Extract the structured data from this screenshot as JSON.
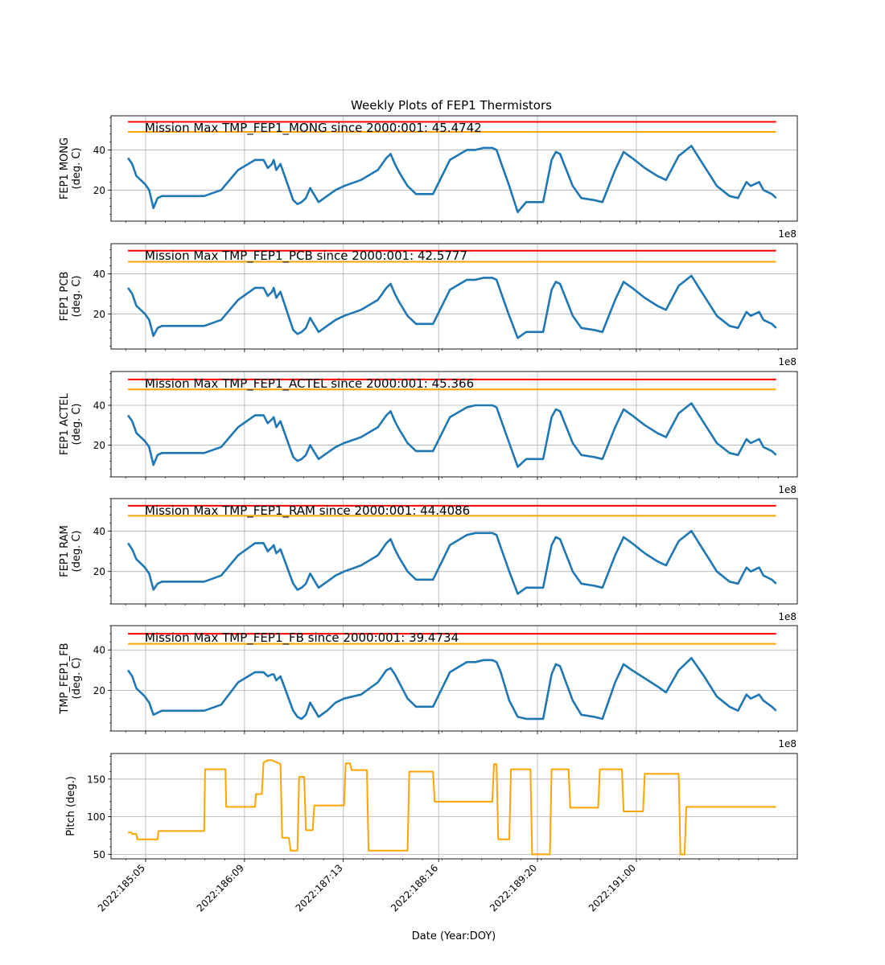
{
  "figure": {
    "title": "Weekly Plots of FEP1 Thermistors",
    "xlabel": "Date (Year:DOY)",
    "offset_label": "1e8"
  },
  "colors": {
    "data_line": "#1f77b4",
    "red_limit": "#ff0000",
    "yellow_limit": "#ffa500",
    "pitch_line": "#ffa500",
    "grid": "#b0b0b0"
  },
  "chart_data": [
    {
      "type": "line",
      "ylabel": [
        "FEP1 MONG",
        "(deg. C)"
      ],
      "ylim": [
        4.5,
        57
      ],
      "yticks": [
        20,
        40
      ],
      "annotation": "Mission Max TMP_FEP1_MONG since 2000:001: 45.4742",
      "limits": {
        "red": 54,
        "yellow": 49
      },
      "series": [
        {
          "x": [
            185.0,
            185.05,
            185.1,
            185.15,
            185.2,
            185.25,
            185.3,
            185.35,
            185.4,
            185.5,
            185.7,
            185.9,
            186.1,
            186.3,
            186.5,
            186.6,
            186.65,
            186.7,
            186.72,
            186.75,
            186.8,
            186.95,
            187.0,
            187.05,
            187.1,
            187.15,
            187.25,
            187.35,
            187.45,
            187.55,
            187.75,
            187.95,
            188.05,
            188.1,
            188.15,
            188.2,
            188.3,
            188.4,
            188.5,
            188.6,
            188.8,
            189.0,
            189.1,
            189.2,
            189.3,
            189.35,
            189.4,
            189.5,
            189.6,
            189.7,
            189.8,
            189.9,
            190.0,
            190.05,
            190.1,
            190.25,
            190.35,
            190.5,
            190.6,
            190.75,
            190.85,
            190.95,
            191.1,
            191.25,
            191.35,
            191.5,
            191.65,
            191.8,
            191.95,
            192.1,
            192.2,
            192.3,
            192.35,
            192.45,
            192.5,
            192.6,
            192.65
          ],
          "values": [
            36,
            33,
            27,
            25,
            23,
            20,
            11,
            16,
            17,
            17,
            17,
            17,
            20,
            30,
            35,
            35,
            31,
            33,
            35,
            30,
            33,
            15,
            13,
            14,
            16,
            21,
            14,
            17,
            20,
            22,
            25,
            30,
            36,
            38,
            33,
            29,
            22,
            18,
            18,
            18,
            35,
            40,
            40,
            41,
            41,
            40,
            34,
            22,
            9,
            14,
            14,
            14,
            35,
            39,
            38,
            22,
            16,
            15,
            14,
            30,
            39,
            36,
            31,
            27,
            25,
            37,
            42,
            32,
            22,
            17,
            16,
            24,
            22,
            24,
            20,
            18,
            16
          ]
        }
      ]
    },
    {
      "type": "line",
      "ylabel": [
        "FEP1 PCB",
        "(deg. C)"
      ],
      "ylim": [
        2.5,
        55
      ],
      "yticks": [
        20,
        40
      ],
      "annotation": "Mission Max TMP_FEP1_PCB since 2000:001: 42.5777",
      "limits": {
        "red": 51.5,
        "yellow": 46
      },
      "series": [
        {
          "x": [
            185.0,
            185.05,
            185.1,
            185.15,
            185.2,
            185.25,
            185.3,
            185.35,
            185.4,
            185.5,
            185.7,
            185.9,
            186.1,
            186.3,
            186.5,
            186.6,
            186.65,
            186.7,
            186.72,
            186.75,
            186.8,
            186.95,
            187.0,
            187.05,
            187.1,
            187.15,
            187.25,
            187.35,
            187.45,
            187.55,
            187.75,
            187.95,
            188.05,
            188.1,
            188.15,
            188.2,
            188.3,
            188.4,
            188.5,
            188.6,
            188.8,
            189.0,
            189.1,
            189.2,
            189.3,
            189.35,
            189.4,
            189.5,
            189.6,
            189.7,
            189.8,
            189.9,
            190.0,
            190.05,
            190.1,
            190.25,
            190.35,
            190.5,
            190.6,
            190.75,
            190.85,
            190.95,
            191.1,
            191.25,
            191.35,
            191.5,
            191.65,
            191.8,
            191.95,
            192.1,
            192.2,
            192.3,
            192.35,
            192.45,
            192.5,
            192.6,
            192.65
          ],
          "values": [
            33,
            30,
            24,
            22,
            20,
            17,
            9,
            13,
            14,
            14,
            14,
            14,
            17,
            27,
            33,
            33,
            29,
            31,
            33,
            28,
            31,
            12,
            10,
            11,
            13,
            18,
            11,
            14,
            17,
            19,
            22,
            27,
            33,
            35,
            30,
            26,
            19,
            15,
            15,
            15,
            32,
            37,
            37,
            38,
            38,
            37,
            31,
            19,
            8,
            11,
            11,
            11,
            32,
            36,
            35,
            19,
            13,
            12,
            11,
            27,
            36,
            33,
            28,
            24,
            22,
            34,
            39,
            29,
            19,
            14,
            13,
            21,
            19,
            21,
            17,
            15,
            13
          ]
        }
      ]
    },
    {
      "type": "line",
      "ylabel": [
        "FEP1 ACTEL",
        "(deg. C)"
      ],
      "ylim": [
        4,
        57
      ],
      "yticks": [
        20,
        40
      ],
      "annotation": "Mission Max TMP_FEP1_ACTEL since 2000:001: 45.366",
      "limits": {
        "red": 53,
        "yellow": 48
      },
      "series": [
        {
          "x": [
            185.0,
            185.05,
            185.1,
            185.15,
            185.2,
            185.25,
            185.3,
            185.35,
            185.4,
            185.5,
            185.7,
            185.9,
            186.1,
            186.3,
            186.5,
            186.6,
            186.65,
            186.7,
            186.72,
            186.75,
            186.8,
            186.95,
            187.0,
            187.05,
            187.1,
            187.15,
            187.25,
            187.35,
            187.45,
            187.55,
            187.75,
            187.95,
            188.05,
            188.1,
            188.15,
            188.2,
            188.3,
            188.4,
            188.5,
            188.6,
            188.8,
            189.0,
            189.1,
            189.2,
            189.3,
            189.35,
            189.4,
            189.5,
            189.6,
            189.7,
            189.8,
            189.9,
            190.0,
            190.05,
            190.1,
            190.25,
            190.35,
            190.5,
            190.6,
            190.75,
            190.85,
            190.95,
            191.1,
            191.25,
            191.35,
            191.5,
            191.65,
            191.8,
            191.95,
            192.1,
            192.2,
            192.3,
            192.35,
            192.45,
            192.5,
            192.6,
            192.65
          ],
          "values": [
            35,
            32,
            26,
            24,
            22,
            19,
            10,
            15,
            16,
            16,
            16,
            16,
            19,
            29,
            35,
            35,
            31,
            33,
            34,
            29,
            32,
            14,
            12,
            13,
            15,
            20,
            13,
            16,
            19,
            21,
            24,
            29,
            35,
            37,
            32,
            28,
            21,
            17,
            17,
            17,
            34,
            39,
            40,
            40,
            40,
            39,
            33,
            21,
            9,
            13,
            13,
            13,
            34,
            38,
            37,
            21,
            15,
            14,
            13,
            29,
            38,
            35,
            30,
            26,
            24,
            36,
            41,
            31,
            21,
            16,
            15,
            23,
            21,
            23,
            19,
            17,
            15
          ]
        }
      ]
    },
    {
      "type": "line",
      "ylabel": [
        "FEP1 RAM",
        "(deg. C)"
      ],
      "ylim": [
        4,
        56
      ],
      "yticks": [
        20,
        40
      ],
      "annotation": "Mission Max TMP_FEP1_RAM since 2000:001: 44.4086",
      "limits": {
        "red": 52.5,
        "yellow": 47.5
      },
      "series": [
        {
          "x": [
            185.0,
            185.05,
            185.1,
            185.15,
            185.2,
            185.25,
            185.3,
            185.35,
            185.4,
            185.5,
            185.7,
            185.9,
            186.1,
            186.3,
            186.5,
            186.6,
            186.65,
            186.7,
            186.72,
            186.75,
            186.8,
            186.95,
            187.0,
            187.05,
            187.1,
            187.15,
            187.25,
            187.35,
            187.45,
            187.55,
            187.75,
            187.95,
            188.05,
            188.1,
            188.15,
            188.2,
            188.3,
            188.4,
            188.5,
            188.6,
            188.8,
            189.0,
            189.1,
            189.2,
            189.3,
            189.35,
            189.4,
            189.5,
            189.6,
            189.7,
            189.8,
            189.9,
            190.0,
            190.05,
            190.1,
            190.25,
            190.35,
            190.5,
            190.6,
            190.75,
            190.85,
            190.95,
            191.1,
            191.25,
            191.35,
            191.5,
            191.65,
            191.8,
            191.95,
            192.1,
            192.2,
            192.3,
            192.35,
            192.45,
            192.5,
            192.6,
            192.65
          ],
          "values": [
            34,
            31,
            26,
            24,
            22,
            19,
            11,
            14,
            15,
            15,
            15,
            15,
            18,
            28,
            34,
            34,
            30,
            32,
            33,
            29,
            31,
            14,
            11,
            12,
            14,
            19,
            12,
            15,
            18,
            20,
            23,
            28,
            34,
            36,
            31,
            27,
            20,
            16,
            16,
            16,
            33,
            38,
            39,
            39,
            39,
            38,
            32,
            20,
            9,
            12,
            12,
            12,
            33,
            37,
            36,
            20,
            14,
            13,
            12,
            28,
            37,
            34,
            29,
            25,
            23,
            35,
            40,
            30,
            20,
            15,
            14,
            22,
            20,
            22,
            18,
            16,
            14
          ]
        }
      ]
    },
    {
      "type": "line",
      "ylabel": [
        "TMP_FEP1_FB",
        "(deg. C)"
      ],
      "ylim": [
        0,
        52
      ],
      "yticks": [
        20,
        40
      ],
      "annotation": "Mission Max TMP_FEP1_FB since 2000:001: 39.4734",
      "limits": {
        "red": 48,
        "yellow": 43
      },
      "series": [
        {
          "x": [
            185.0,
            185.05,
            185.1,
            185.15,
            185.2,
            185.25,
            185.3,
            185.35,
            185.4,
            185.5,
            185.7,
            185.9,
            186.1,
            186.3,
            186.5,
            186.6,
            186.65,
            186.7,
            186.72,
            186.75,
            186.8,
            186.95,
            187.0,
            187.05,
            187.1,
            187.15,
            187.25,
            187.35,
            187.45,
            187.55,
            187.75,
            187.95,
            188.05,
            188.1,
            188.15,
            188.2,
            188.3,
            188.4,
            188.5,
            188.6,
            188.8,
            189.0,
            189.1,
            189.2,
            189.3,
            189.35,
            189.4,
            189.5,
            189.6,
            189.7,
            189.8,
            189.9,
            190.0,
            190.05,
            190.1,
            190.25,
            190.35,
            190.5,
            190.6,
            190.75,
            190.85,
            190.95,
            191.1,
            191.25,
            191.35,
            191.5,
            191.65,
            191.8,
            191.95,
            192.1,
            192.2,
            192.3,
            192.35,
            192.45,
            192.5,
            192.6,
            192.65
          ],
          "values": [
            30,
            27,
            21,
            19,
            17,
            14,
            8,
            9,
            10,
            10,
            10,
            10,
            13,
            24,
            29,
            29,
            27,
            28,
            28,
            25,
            27,
            10,
            7,
            6,
            8,
            14,
            7,
            10,
            14,
            16,
            18,
            24,
            30,
            31,
            28,
            24,
            16,
            12,
            12,
            12,
            29,
            34,
            34,
            35,
            35,
            34,
            29,
            15,
            7,
            6,
            6,
            6,
            28,
            33,
            32,
            15,
            8,
            7,
            6,
            24,
            33,
            30,
            26,
            22,
            19,
            30,
            36,
            27,
            17,
            12,
            10,
            18,
            16,
            18,
            15,
            12,
            10
          ]
        }
      ]
    },
    {
      "type": "line",
      "ylabel": [
        "Pitch (deg.)"
      ],
      "ylim": [
        44,
        184
      ],
      "yticks": [
        50,
        100,
        150
      ],
      "series": [
        {
          "x": [
            185.0,
            185.04,
            185.05,
            185.1,
            185.11,
            185.35,
            185.36,
            185.9,
            185.91,
            186.15,
            186.16,
            186.5,
            186.51,
            186.58,
            186.6,
            186.65,
            186.7,
            186.8,
            186.82,
            186.9,
            186.92,
            187.0,
            187.02,
            187.08,
            187.1,
            187.18,
            187.2,
            187.55,
            187.57,
            187.62,
            187.64,
            187.82,
            187.84,
            188.3,
            188.32,
            188.6,
            188.62,
            189.3,
            189.32,
            189.35,
            189.37,
            189.5,
            189.52,
            189.75,
            189.77,
            189.98,
            190.0,
            190.2,
            190.22,
            190.55,
            190.57,
            190.83,
            190.85,
            191.08,
            191.1,
            191.5,
            191.52,
            191.57,
            191.59,
            191.63,
            191.65,
            191.75,
            191.77,
            192.65
          ],
          "values": [
            79,
            79,
            77,
            77,
            70,
            70,
            81,
            81,
            163,
            163,
            113,
            113,
            130,
            130,
            172,
            175,
            175,
            170,
            72,
            72,
            55,
            55,
            153,
            153,
            82,
            82,
            115,
            115,
            171,
            171,
            162,
            162,
            55,
            55,
            160,
            160,
            120,
            120,
            170,
            170,
            70,
            70,
            163,
            163,
            50,
            50,
            163,
            163,
            112,
            112,
            163,
            163,
            107,
            107,
            157,
            157,
            50,
            50,
            113,
            113,
            113,
            113,
            113,
            113
          ]
        }
      ]
    }
  ],
  "xaxis": {
    "xlim": [
      184.8,
      192.9
    ],
    "ticks": [
      {
        "x": 185.2083,
        "label": "2022:185:05"
      },
      {
        "x": 186.375,
        "label": "2022:186:09"
      },
      {
        "x": 187.5417,
        "label": "2022:187:13"
      },
      {
        "x": 188.6667,
        "label": "2022:188:16"
      },
      {
        "x": 189.8333,
        "label": "2022:189:20"
      },
      {
        "x": 191.0,
        "label": "2022:191:00"
      }
    ]
  }
}
